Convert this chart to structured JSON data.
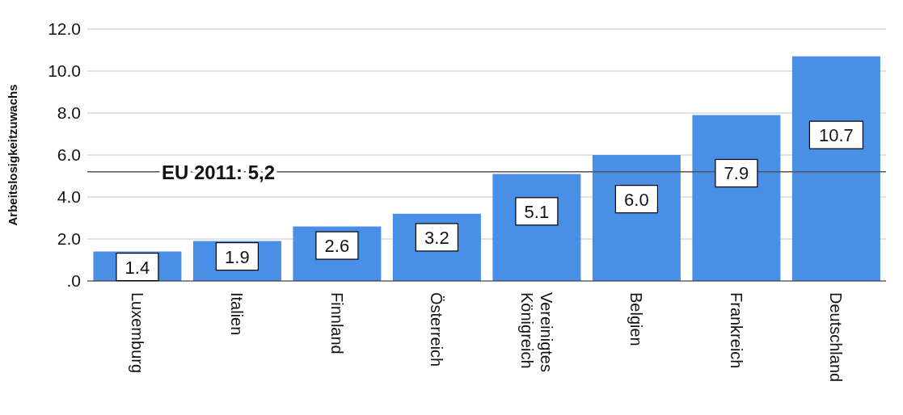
{
  "chart_data": {
    "type": "bar",
    "ylabel": "Arbeitslosigkeitzuwachs",
    "categories": [
      "Luxemburg",
      "Italien",
      "Finnland",
      "Österreich",
      "Vereinigtes Königreich",
      "Belgien",
      "Frankreich",
      "Deutschland"
    ],
    "values": [
      1.4,
      1.9,
      2.6,
      3.2,
      5.1,
      6.0,
      7.9,
      10.7
    ],
    "value_labels": [
      "1.4",
      "1.9",
      "2.6",
      "3.2",
      "5.1",
      "6.0",
      "7.9",
      "10.7"
    ],
    "color": "#4a8fe6",
    "ylim": [
      0,
      12
    ],
    "yticks": [
      {
        "value": 0,
        "label": ".0"
      },
      {
        "value": 2,
        "label": "2.0"
      },
      {
        "value": 4,
        "label": "4.0"
      },
      {
        "value": 6,
        "label": "6.0"
      },
      {
        "value": 8,
        "label": "8.0"
      },
      {
        "value": 10,
        "label": "10.0"
      },
      {
        "value": 12,
        "label": "12.0"
      }
    ],
    "grid": "y",
    "ref_lines": [
      {
        "axis": "y",
        "value": 5.2,
        "label": "EU 2011: 5,2",
        "color": "#555555"
      }
    ]
  }
}
